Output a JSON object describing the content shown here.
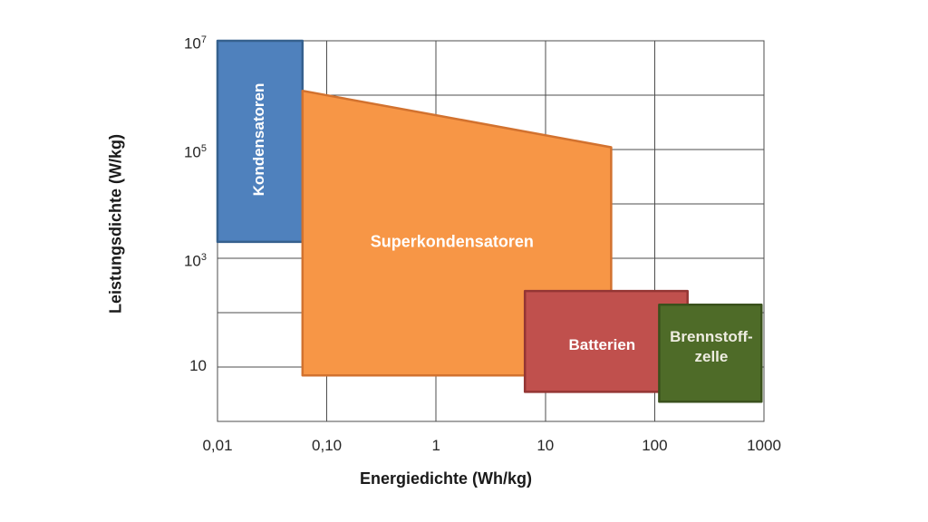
{
  "page": {
    "background": "#ffffff"
  },
  "chart_data": {
    "type": "area",
    "variant": "ragone-region-chart",
    "scale": "log-log",
    "title": "",
    "xlabel": "Energiedichte (Wh/kg)",
    "ylabel": "Leistungsdichte (W/kg)",
    "xlim": [
      0.01,
      1000
    ],
    "ylim": [
      1,
      10000000
    ],
    "grid": "on, one line per decade on both axes, full box border",
    "grid_color": "#4d4d4d",
    "tick_color": "#262626",
    "axis_title_color": "#1a1a1a",
    "x_ticks": [
      {
        "value": 0.01,
        "label": "0,01"
      },
      {
        "value": 0.1,
        "label": "0,10"
      },
      {
        "value": 1,
        "label": "1"
      },
      {
        "value": 10,
        "label": "10"
      },
      {
        "value": 100,
        "label": "100"
      },
      {
        "value": 1000,
        "label": "1000"
      }
    ],
    "y_ticks": [
      {
        "value": 10000000,
        "base": "10",
        "exp": "7"
      },
      {
        "value": 100000,
        "base": "10",
        "exp": "5"
      },
      {
        "value": 1000,
        "base": "10",
        "exp": "3"
      },
      {
        "value": 10,
        "base": "10",
        "exp": ""
      }
    ],
    "regions": [
      {
        "id": "kondensatoren",
        "label_lines": [
          "Kondensatoren"
        ],
        "label_rotation": -90,
        "label_at": [
          0.024,
          150000
        ],
        "label_color": "#ffffff",
        "label_size_px": 17,
        "fill": "#4f81bd",
        "stroke": "#36618e",
        "x_range_wh_per_kg": [
          0.01,
          0.06
        ],
        "y_range_w_per_kg": [
          2000,
          10000000
        ],
        "points": [
          [
            0.01,
            10000000
          ],
          [
            0.06,
            10000000
          ],
          [
            0.06,
            2000
          ],
          [
            0.01,
            2000
          ]
        ]
      },
      {
        "id": "superkondensatoren",
        "label_lines": [
          "Superkondensatoren"
        ],
        "label_rotation": 0,
        "label_at": [
          1.4,
          2000
        ],
        "label_color": "#ffffff",
        "label_size_px": 18,
        "fill": "#f79646",
        "stroke": "#d2722f",
        "x_range_wh_per_kg": [
          0.06,
          40
        ],
        "y_range_w_per_kg": [
          7,
          1200000
        ],
        "points": [
          [
            0.06,
            1200000
          ],
          [
            40,
            110000
          ],
          [
            40,
            7
          ],
          [
            0.06,
            7
          ]
        ]
      },
      {
        "id": "batterien",
        "label_lines": [
          "Batterien"
        ],
        "label_rotation": 0,
        "label_at": [
          33,
          25
        ],
        "label_color": "#ffffff",
        "label_size_px": 17,
        "fill": "#c0504d",
        "stroke": "#943634",
        "x_range_wh_per_kg": [
          6.5,
          200
        ],
        "y_range_w_per_kg": [
          3.5,
          250
        ],
        "points": [
          [
            6.5,
            250
          ],
          [
            200,
            250
          ],
          [
            200,
            3.5
          ],
          [
            6.5,
            3.5
          ]
        ]
      },
      {
        "id": "brennstoffzelle",
        "label_lines": [
          "Brennstoff-",
          "zelle"
        ],
        "label_rotation": 0,
        "label_at": [
          330,
          23
        ],
        "label_color": "#eeece1",
        "label_size_px": 17,
        "fill": "#4e6b28",
        "stroke": "#3a511c",
        "x_range_wh_per_kg": [
          110,
          950
        ],
        "y_range_w_per_kg": [
          2.3,
          140
        ],
        "points": [
          [
            110,
            140
          ],
          [
            950,
            140
          ],
          [
            950,
            2.3
          ],
          [
            110,
            2.3
          ]
        ]
      }
    ]
  }
}
